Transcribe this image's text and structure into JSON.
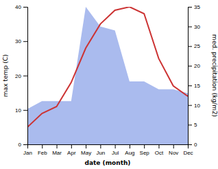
{
  "chart_data": {
    "type": "line",
    "categories": [
      "Jan",
      "Feb",
      "Mar",
      "Apr",
      "May",
      "Jun",
      "Jul",
      "Aug",
      "Sep",
      "Oct",
      "Nov",
      "Dec"
    ],
    "series": [
      {
        "type": "area",
        "axis": "y2",
        "color": "#aabbee",
        "values": [
          9,
          11,
          11,
          11,
          35,
          30,
          29,
          16,
          16,
          14,
          14,
          13
        ]
      },
      {
        "type": "line",
        "color": "#cc3333",
        "values": [
          5,
          9,
          11,
          18,
          28,
          35,
          39,
          40,
          38,
          25,
          17,
          14
        ]
      }
    ],
    "xlabel": "date (month)",
    "ylabel": "max temp (C)",
    "y2label": "med. precipitation (kg/m2)",
    "ylim": [
      0,
      40
    ],
    "yticks": [
      0,
      10,
      20,
      30,
      40
    ],
    "y2lim": [
      0,
      35
    ],
    "y2ticks": [
      0,
      5,
      10,
      15,
      20,
      25,
      30,
      35
    ],
    "grid": false
  }
}
